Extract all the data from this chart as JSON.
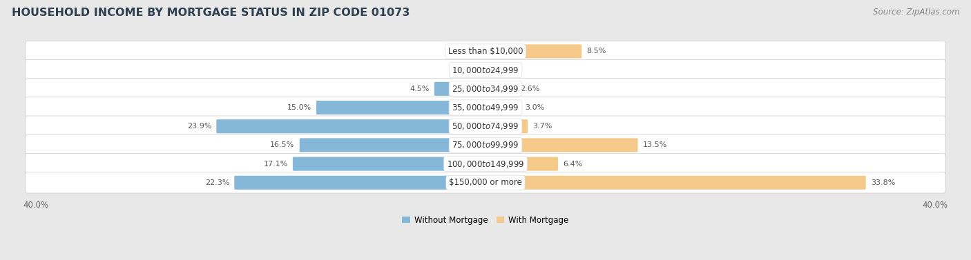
{
  "title": "HOUSEHOLD INCOME BY MORTGAGE STATUS IN ZIP CODE 01073",
  "source": "Source: ZipAtlas.com",
  "categories": [
    "Less than $10,000",
    "$10,000 to $24,999",
    "$25,000 to $34,999",
    "$35,000 to $49,999",
    "$50,000 to $74,999",
    "$75,000 to $99,999",
    "$100,000 to $149,999",
    "$150,000 or more"
  ],
  "without_mortgage": [
    0.0,
    0.8,
    4.5,
    15.0,
    23.9,
    16.5,
    17.1,
    22.3
  ],
  "with_mortgage": [
    8.5,
    0.0,
    2.6,
    3.0,
    3.7,
    13.5,
    6.4,
    33.8
  ],
  "without_mortgage_color": "#85b8d8",
  "with_mortgage_color": "#f5c98a",
  "xlim": 40.0,
  "fig_bg_color": "#e8e8e8",
  "row_bg_color": "#f0f0f0",
  "title_fontsize": 11.5,
  "label_fontsize": 8.0,
  "cat_fontsize": 8.5,
  "tick_fontsize": 8.5,
  "legend_fontsize": 8.5,
  "source_fontsize": 8.5
}
